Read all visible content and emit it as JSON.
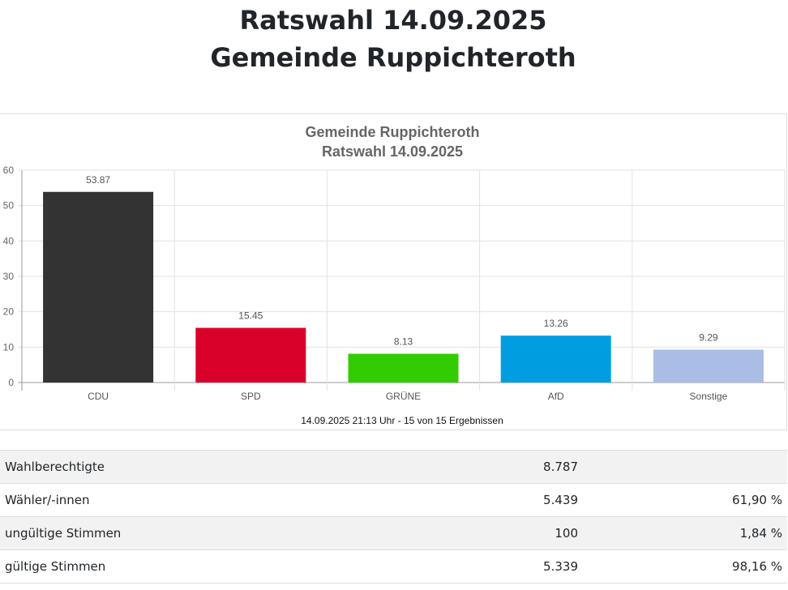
{
  "page": {
    "title_line1": "Ratswahl 14.09.2025",
    "title_line2": "Gemeinde Ruppichteroth"
  },
  "chart_data": {
    "type": "bar",
    "title": "Gemeinde Ruppichteroth",
    "subtitle": "Ratswahl 14.09.2025",
    "categories": [
      "CDU",
      "SPD",
      "GRÜNE",
      "AfD",
      "Sonstige"
    ],
    "values": [
      53.87,
      15.45,
      8.13,
      13.26,
      9.29
    ],
    "colors": [
      "#333333",
      "#d9002a",
      "#33cc00",
      "#009ee0",
      "#aabde5"
    ],
    "ylim": [
      0,
      60
    ],
    "yticks": [
      0,
      10,
      20,
      30,
      40,
      50,
      60
    ],
    "xlabel": "",
    "ylabel": "",
    "grid": true,
    "footer": "14.09.2025 21:13 Uhr - 15 von 15 Ergebnissen"
  },
  "stats": [
    {
      "label": "Wahlberechtigte",
      "value": "8.787",
      "percent": ""
    },
    {
      "label": "Wähler/-innen",
      "value": "5.439",
      "percent": "61,90 %"
    },
    {
      "label": "ungültige Stimmen",
      "value": "100",
      "percent": "1,84 %"
    },
    {
      "label": "gültige Stimmen",
      "value": "5.339",
      "percent": "98,16 %"
    }
  ]
}
